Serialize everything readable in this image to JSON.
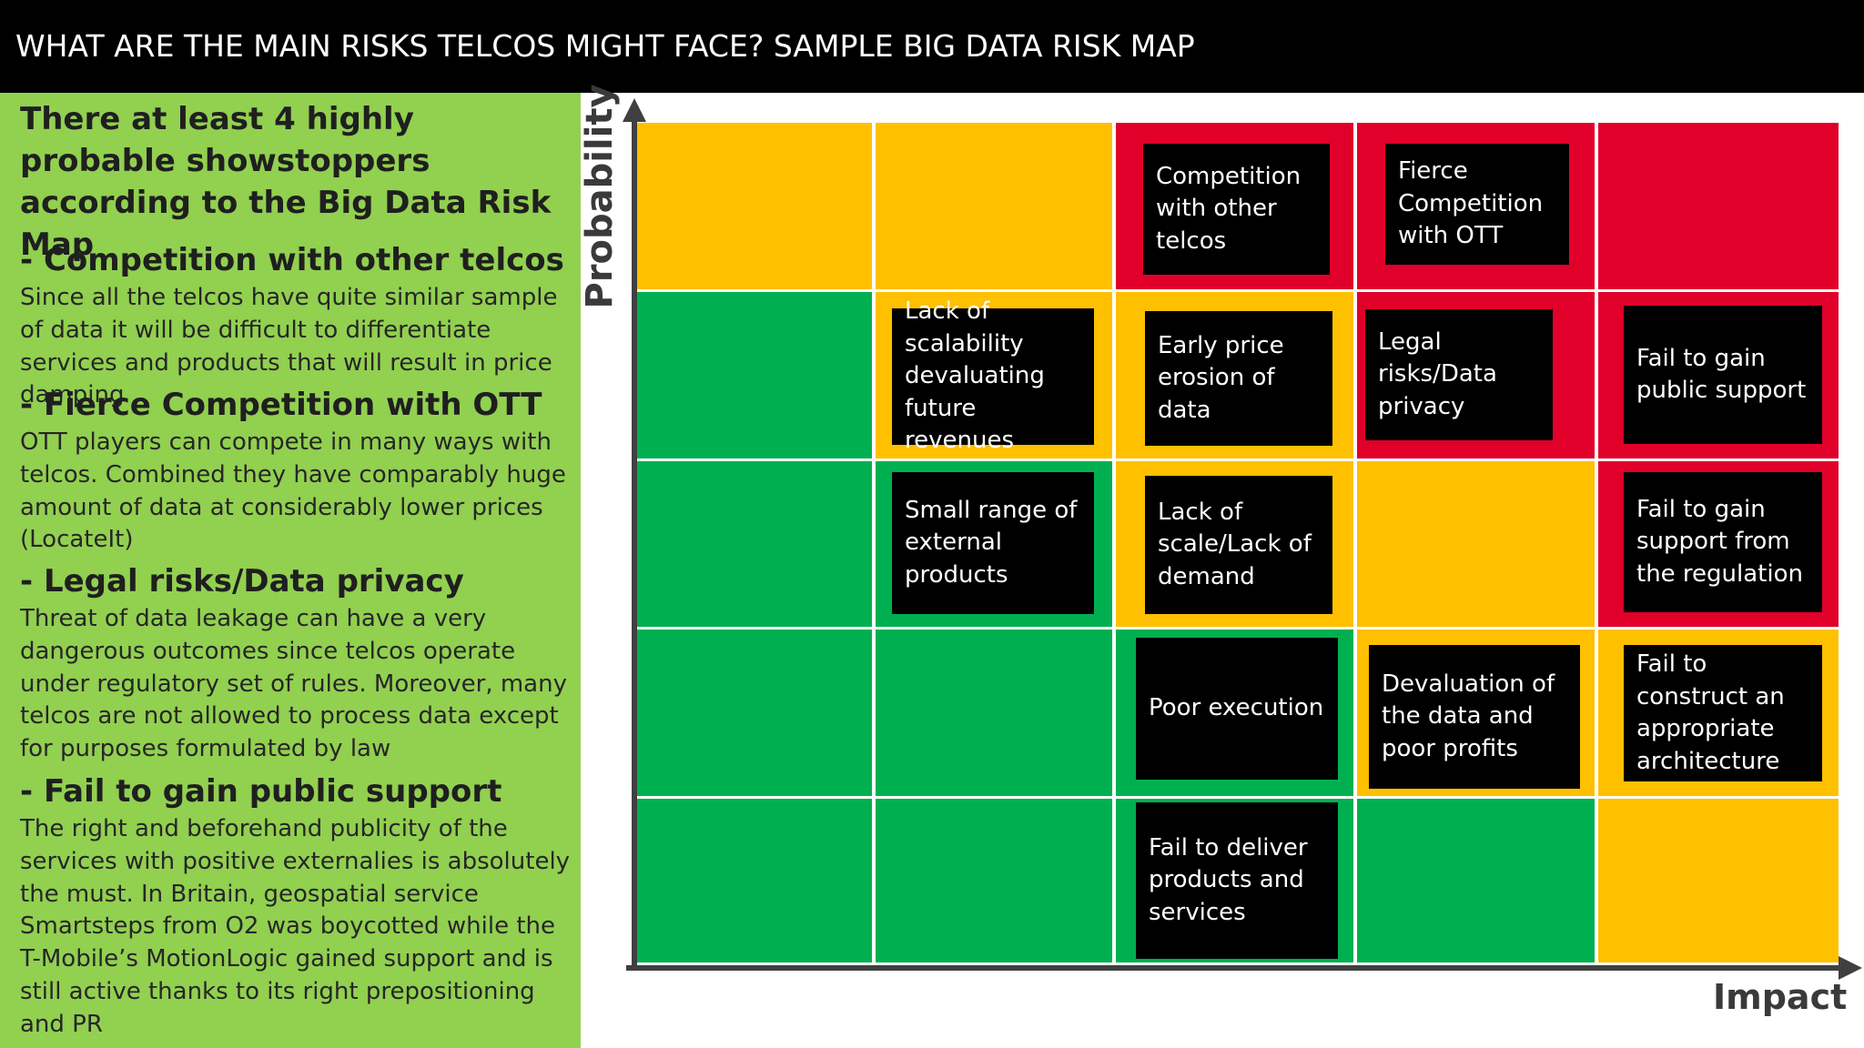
{
  "header": {
    "title": "WHAT ARE THE MAIN RISKS TELCOS MIGHT FACE? SAMPLE BIG DATA RISK MAP"
  },
  "left_panel": {
    "intro": "There at least 4 highly probable showstoppers according to the Big Data Risk Map",
    "sections": [
      {
        "heading": "- Competition with other telcos",
        "body": "Since all the telcos have quite similar sample of data it will be difficult to differentiate services and products that will result in price damping"
      },
      {
        "heading": "- Fierce Competition with OTT",
        "body": "OTT players can compete in many ways with telcos. Combined they have comparably huge amount of data at considerably lower prices (LocateIt)"
      },
      {
        "heading": "- Legal risks/Data privacy",
        "body": "Threat of data leakage can have a very dangerous outcomes since telcos operate under regulatory set of rules. Moreover, many telcos are not allowed to process data except for purposes formulated by law"
      },
      {
        "heading": "- Fail to gain public support",
        "body": "The right and beforehand publicity of the services with positive externalies is absolutely the must. In Britain, geospatial service Smartsteps from O2 was boycotted while the T-Mobile’s MotionLogic gained support and is still active thanks to its right prepositioning and PR"
      }
    ]
  },
  "risk_map": {
    "y_axis_label": "Probability",
    "x_axis_label": "Impact",
    "colors": {
      "red": "#e0002a",
      "amber": "#ffc000",
      "green": "#00b050",
      "box": "#000000"
    },
    "grid_colors": [
      [
        "amber",
        "amber",
        "red",
        "red",
        "red"
      ],
      [
        "green",
        "amber",
        "amber",
        "red",
        "red"
      ],
      [
        "green",
        "green",
        "amber",
        "amber",
        "red"
      ],
      [
        "green",
        "green",
        "green",
        "amber",
        "amber"
      ],
      [
        "green",
        "green",
        "green",
        "green",
        "amber"
      ]
    ],
    "risks": [
      {
        "label": "Competition with other telcos",
        "row": 1,
        "col": 3
      },
      {
        "label": "Fierce Competition with OTT",
        "row": 1,
        "col": 4
      },
      {
        "label": "Lack of scalability devaluating future revenues",
        "row": 2,
        "col": 2
      },
      {
        "label": "Early price erosion of data",
        "row": 2,
        "col": 3
      },
      {
        "label": "Legal risks/Data privacy",
        "row": 2,
        "col": 4
      },
      {
        "label": "Fail to gain public support",
        "row": 2,
        "col": 5
      },
      {
        "label": "Small range of external products",
        "row": 3,
        "col": 2
      },
      {
        "label": "Lack of scale/Lack of demand",
        "row": 3,
        "col": 3
      },
      {
        "label": "Fail to gain support from the regulation",
        "row": 3,
        "col": 5
      },
      {
        "label": "Poor execution",
        "row": 4,
        "col": 3
      },
      {
        "label": "Devaluation of the data and poor profits",
        "row": 4,
        "col": 4
      },
      {
        "label": "Fail to construct an appropriate architecture",
        "row": 4,
        "col": 5
      },
      {
        "label": "Fail to deliver products and services",
        "row": 5,
        "col": 3
      }
    ]
  }
}
